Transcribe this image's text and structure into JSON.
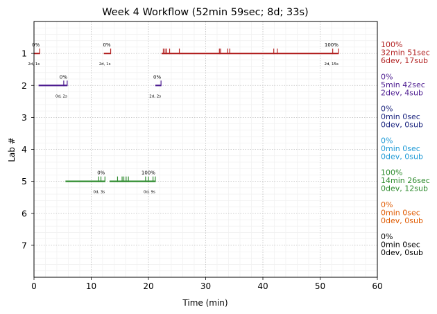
{
  "chart_data": {
    "type": "timeline",
    "title": "Week 4 Workflow (52min 59sec; 8d; 33s)",
    "xlabel": "Time (min)",
    "ylabel": "Lab #",
    "xlim": [
      0,
      60
    ],
    "ylim": [
      0,
      8
    ],
    "xticks": [
      "0",
      "10",
      "20",
      "30",
      "40",
      "50",
      "60"
    ],
    "yticks": [
      "1",
      "2",
      "3",
      "4",
      "5",
      "6",
      "7"
    ],
    "grid": true,
    "labs": [
      {
        "lab": 1,
        "color": "#b22222",
        "summary": [
          "100%",
          "32min 51sec",
          "6dev, 17sub"
        ],
        "segments": [
          {
            "start": 0,
            "end": 1.0,
            "pct": "0%",
            "stats": "2d, 1s",
            "ticks": [
              1.0
            ]
          },
          {
            "start": 12.2,
            "end": 13.4,
            "pct": "0%",
            "stats": "2d, 1s",
            "ticks": [
              13.4
            ]
          },
          {
            "start": 22.3,
            "end": 53.2,
            "pct": "100%",
            "stats": "2d, 15s",
            "ticks": [
              22.6,
              22.9,
              23.2,
              23.7,
              25.4,
              32.4,
              32.6,
              33.8,
              34.2,
              41.9,
              42.5,
              52.2,
              53.2
            ]
          }
        ]
      },
      {
        "lab": 2,
        "color": "#4b1a8f",
        "summary": [
          "0%",
          "5min 42sec",
          "2dev, 4sub"
        ],
        "segments": [
          {
            "start": 0.8,
            "end": 5.8,
            "pct": "0%",
            "stats": "0d, 2s",
            "ticks": [
              5.2,
              5.8
            ]
          },
          {
            "start": 21.2,
            "end": 22.2,
            "pct": "0%",
            "stats": "2d, 2s",
            "ticks": [
              22.2
            ]
          }
        ]
      },
      {
        "lab": 3,
        "color": "#1a237e",
        "summary": [
          "0%",
          "0min 0sec",
          "0dev, 0sub"
        ],
        "segments": []
      },
      {
        "lab": 4,
        "color": "#1e9ad6",
        "summary": [
          "0%",
          "0min 0sec",
          "0dev, 0sub"
        ],
        "segments": []
      },
      {
        "lab": 5,
        "color": "#2e8b2e",
        "summary": [
          "100%",
          "14min 26sec",
          "0dev, 12sub"
        ],
        "segments": [
          {
            "start": 5.5,
            "end": 12.4,
            "pct": "0%",
            "stats": "0d, 3s",
            "ticks": [
              11.3,
              11.7,
              12.4
            ]
          },
          {
            "start": 13.2,
            "end": 21.2,
            "pct": "100%",
            "stats": "0d, 9s",
            "ticks": [
              14.6,
              15.4,
              15.7,
              16.1,
              16.5,
              19.5,
              20.0,
              20.8,
              21.2
            ]
          }
        ]
      },
      {
        "lab": 6,
        "color": "#e05a00",
        "summary": [
          "0%",
          "0min 0sec",
          "0dev, 0sub"
        ],
        "segments": []
      },
      {
        "lab": 7,
        "color": "#000000",
        "summary": [
          "0%",
          "0min 0sec",
          "0dev, 0sub"
        ],
        "segments": []
      }
    ]
  }
}
